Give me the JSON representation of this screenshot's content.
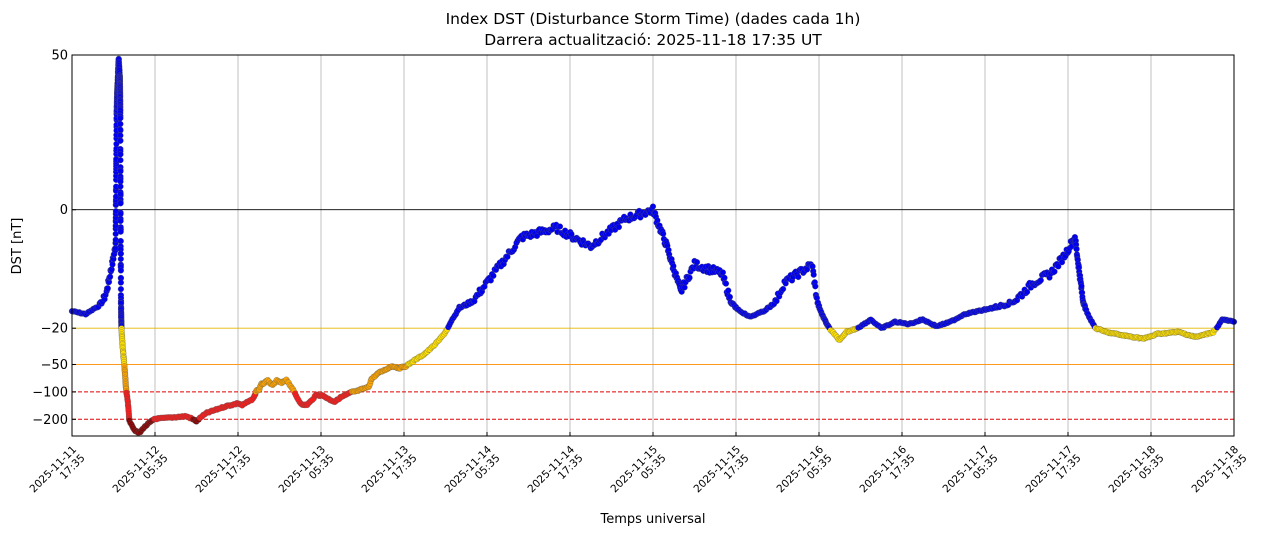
{
  "chart_data": {
    "type": "scatter",
    "title_line1": "Index DST (Disturbance Storm Time) (dades cada 1h)",
    "title_line2": "Darrera actualització: 2025-11-18 17:35 UT",
    "xlabel": "Temps universal",
    "ylabel": "DST [nT]",
    "xlim": [
      0,
      168
    ],
    "ylim": [
      -305,
      50
    ],
    "yscale": "symlog",
    "y_ticks": [
      50,
      0,
      -20,
      -50,
      -100,
      -200
    ],
    "y_tick_labels": [
      "50",
      "0",
      "−20",
      "−50",
      "−100",
      "−200"
    ],
    "x_tick_hours": [
      0,
      12,
      24,
      36,
      48,
      60,
      72,
      84,
      96,
      108,
      120,
      132,
      144,
      156,
      168
    ],
    "x_tick_dates": [
      "2025-11-11",
      "2025-11-12",
      "2025-11-12",
      "2025-11-13",
      "2025-11-13",
      "2025-11-14",
      "2025-11-14",
      "2025-11-15",
      "2025-11-15",
      "2025-11-16",
      "2025-11-16",
      "2025-11-17",
      "2025-11-17",
      "2025-11-18",
      "2025-11-18"
    ],
    "x_tick_times": [
      "17:35",
      "05:35",
      "17:35",
      "05:35",
      "17:35",
      "05:35",
      "17:35",
      "05:35",
      "17:35",
      "05:35",
      "17:35",
      "05:35",
      "17:35",
      "05:35",
      "17:35"
    ],
    "thresholds": [
      {
        "value": 0,
        "color": "#000000",
        "style": "solid"
      },
      {
        "value": -20,
        "color": "#e6b800",
        "style": "solid"
      },
      {
        "value": -50,
        "color": "#ff8c00",
        "style": "solid"
      },
      {
        "value": -100,
        "color": "#e00000",
        "style": "dashed"
      },
      {
        "value": -200,
        "color": "#e00000",
        "style": "dashed"
      }
    ],
    "level_colors": {
      "quiet": "#0000ee",
      "weak": "#ffe000",
      "moderate": "#ffa500",
      "strong": "#ff1a1a",
      "severe": "#8b0000"
    },
    "keyframes": [
      [
        0,
        -13
      ],
      [
        2,
        -14
      ],
      [
        4,
        -11
      ],
      [
        5,
        -9
      ],
      [
        5.8,
        -6
      ],
      [
        6.3,
        -4
      ],
      [
        6.6,
        25
      ],
      [
        6.75,
        46
      ],
      [
        6.9,
        30
      ],
      [
        7.05,
        -5
      ],
      [
        7.15,
        -20
      ],
      [
        7.3,
        -30
      ],
      [
        7.5,
        -45
      ],
      [
        7.65,
        -60
      ],
      [
        7.8,
        -90
      ],
      [
        7.9,
        -105
      ],
      [
        8.05,
        -125
      ],
      [
        8.2,
        -165
      ],
      [
        8.3,
        -210
      ],
      [
        8.6,
        -225
      ],
      [
        9.0,
        -260
      ],
      [
        9.5,
        -280
      ],
      [
        9.9,
        -275
      ],
      [
        10.3,
        -250
      ],
      [
        10.7,
        -235
      ],
      [
        11.1,
        -220
      ],
      [
        11.5,
        -210
      ],
      [
        11.9,
        -198
      ],
      [
        16.5,
        -185
      ],
      [
        17.2,
        -195
      ],
      [
        18.0,
        -210
      ],
      [
        18.8,
        -185
      ],
      [
        19.5,
        -170
      ],
      [
        20.5,
        -160
      ],
      [
        21.5,
        -150
      ],
      [
        22.5,
        -142
      ],
      [
        23.3,
        -138
      ],
      [
        24.0,
        -133
      ],
      [
        24.6,
        -140
      ],
      [
        25.3,
        -130
      ],
      [
        25.8,
        -125
      ],
      [
        26.3,
        -115
      ],
      [
        26.7,
        -95
      ],
      [
        27.0,
        -96
      ],
      [
        27.4,
        -82
      ],
      [
        27.8,
        -80
      ],
      [
        28.3,
        -75
      ],
      [
        29.0,
        -85
      ],
      [
        29.6,
        -75
      ],
      [
        30.3,
        -80
      ],
      [
        31.0,
        -73
      ],
      [
        31.8,
        -90
      ],
      [
        32.4,
        -110
      ],
      [
        32.9,
        -128
      ],
      [
        33.4,
        -140
      ],
      [
        34.0,
        -138
      ],
      [
        34.6,
        -125
      ],
      [
        35.3,
        -108
      ],
      [
        36.3,
        -110
      ],
      [
        37.3,
        -122
      ],
      [
        38.0,
        -128
      ],
      [
        38.8,
        -115
      ],
      [
        39.6,
        -108
      ],
      [
        40.5,
        -100
      ],
      [
        41.2,
        -98
      ],
      [
        42.0,
        -93
      ],
      [
        42.9,
        -88
      ],
      [
        43.3,
        -72
      ],
      [
        44.3,
        -62
      ],
      [
        45.3,
        -57
      ],
      [
        46.3,
        -52
      ],
      [
        47.3,
        -55
      ],
      [
        48.3,
        -52
      ],
      [
        49.5,
        -45
      ],
      [
        51.0,
        -38
      ],
      [
        52.5,
        -30
      ],
      [
        53.8,
        -23
      ],
      [
        55.0,
        -16
      ],
      [
        56.0,
        -12
      ],
      [
        60.0,
        -8
      ],
      [
        65.0,
        -3
      ],
      [
        70.0,
        -2
      ],
      [
        75.0,
        -4
      ],
      [
        80.0,
        -1
      ],
      [
        84.0,
        0
      ],
      [
        86.0,
        -4
      ],
      [
        88.0,
        -9
      ],
      [
        90.0,
        -6
      ],
      [
        94.0,
        -7
      ],
      [
        96.0,
        -12
      ],
      [
        98.0,
        -15
      ],
      [
        100.0,
        -13
      ],
      [
        103.0,
        -8
      ],
      [
        107.0,
        -6
      ],
      [
        109.5,
        -20
      ],
      [
        111.0,
        -27
      ],
      [
        112.0,
        -22
      ],
      [
        113.5,
        -20
      ],
      [
        115.5,
        -16
      ],
      [
        117.0,
        -20
      ],
      [
        119.0,
        -17
      ],
      [
        121.0,
        -18
      ],
      [
        123.0,
        -16
      ],
      [
        125.0,
        -19
      ],
      [
        127.0,
        -17
      ],
      [
        129.0,
        -14
      ],
      [
        131.0,
        -13
      ],
      [
        135.0,
        -11
      ],
      [
        139.0,
        -8
      ],
      [
        141.5,
        -7
      ],
      [
        143.5,
        -5
      ],
      [
        145.0,
        -3
      ],
      [
        146.5,
        -12
      ],
      [
        148.0,
        -20
      ],
      [
        149.5,
        -22
      ],
      [
        152.0,
        -24
      ],
      [
        155.0,
        -26
      ],
      [
        157.0,
        -23
      ],
      [
        160.0,
        -22
      ],
      [
        162.5,
        -25
      ],
      [
        165.0,
        -22
      ],
      [
        166.3,
        -16
      ],
      [
        168.0,
        -17
      ]
    ],
    "gap_hours": [
      12,
      16.5
    ]
  }
}
